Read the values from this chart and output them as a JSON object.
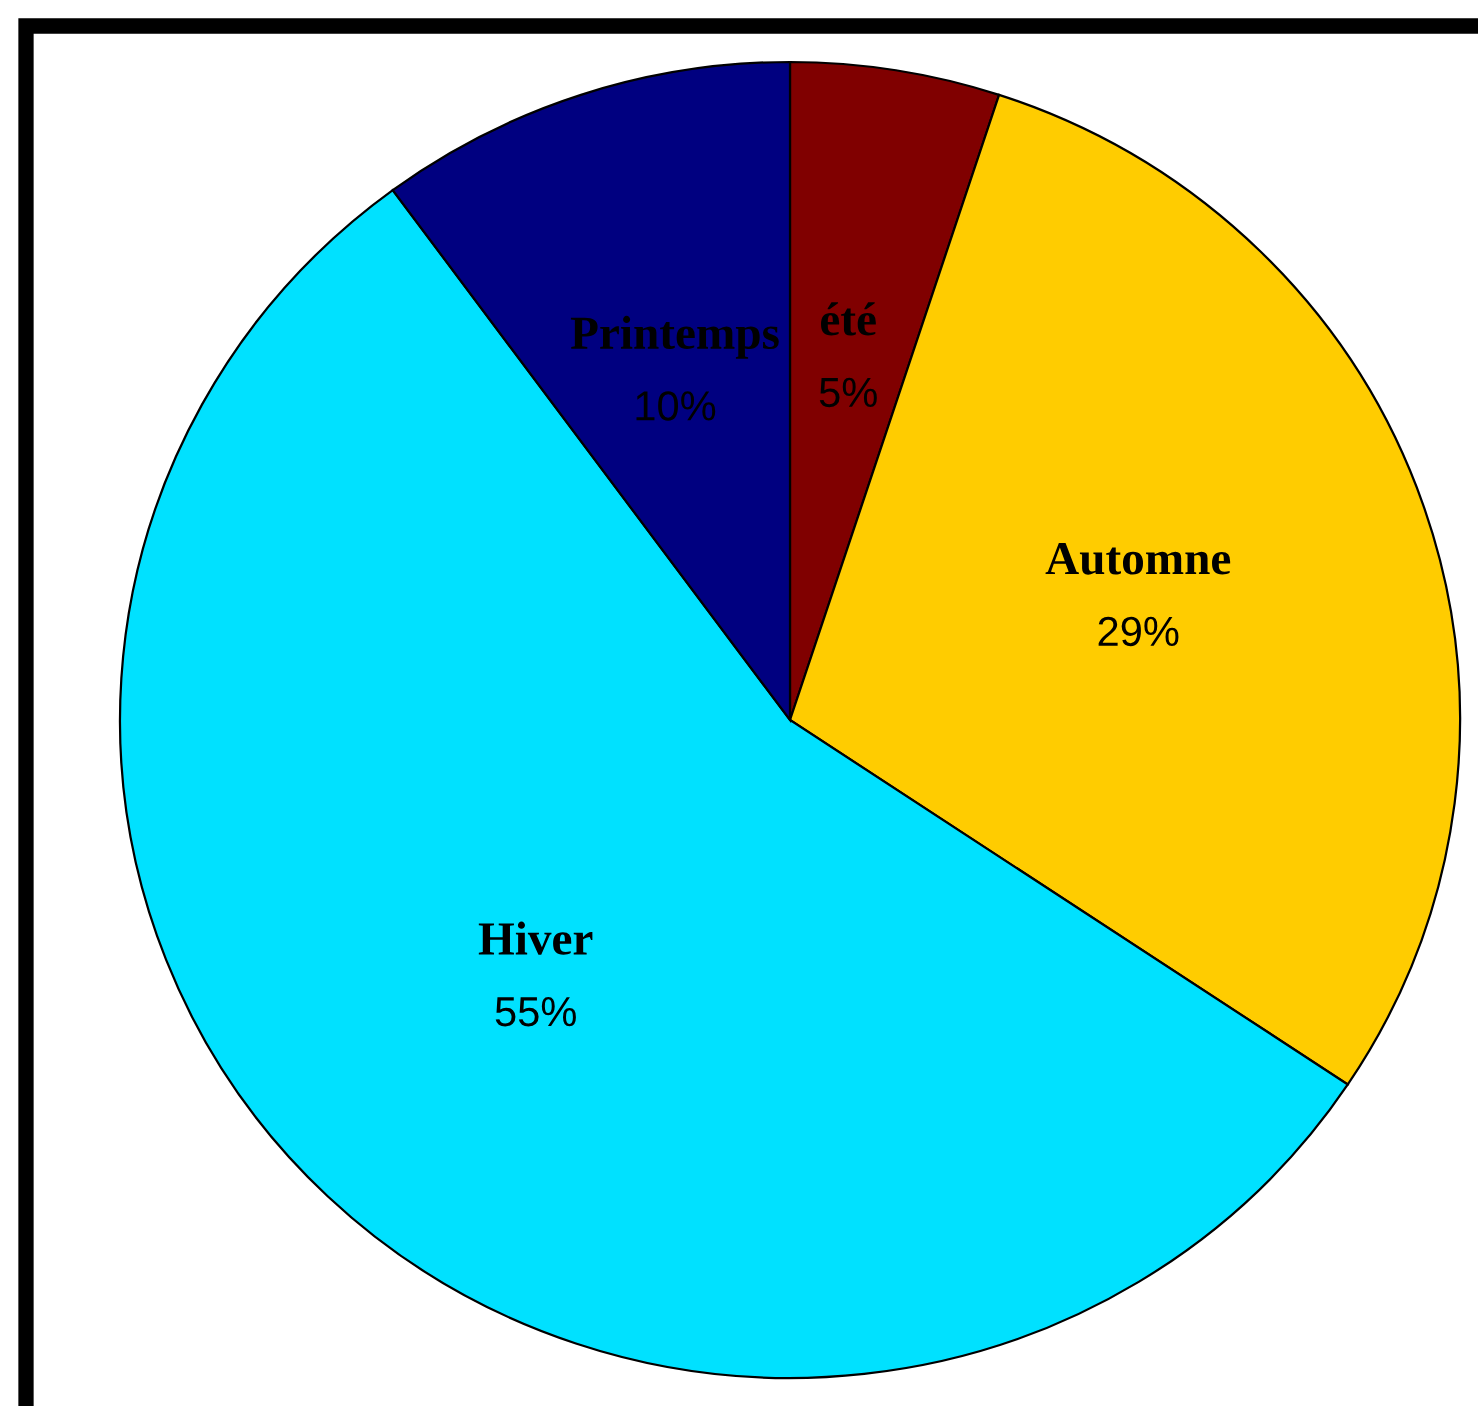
{
  "chart_data": {
    "type": "pie",
    "categories": [
      "été",
      "Automne",
      "Hiver",
      "Printemps"
    ],
    "values": [
      5,
      29,
      55,
      10
    ],
    "colors": [
      "#800000",
      "#ffcc00",
      "#00e1ff",
      "#000080"
    ],
    "value_labels": [
      "5%",
      "29%",
      "55%",
      "10%"
    ]
  }
}
